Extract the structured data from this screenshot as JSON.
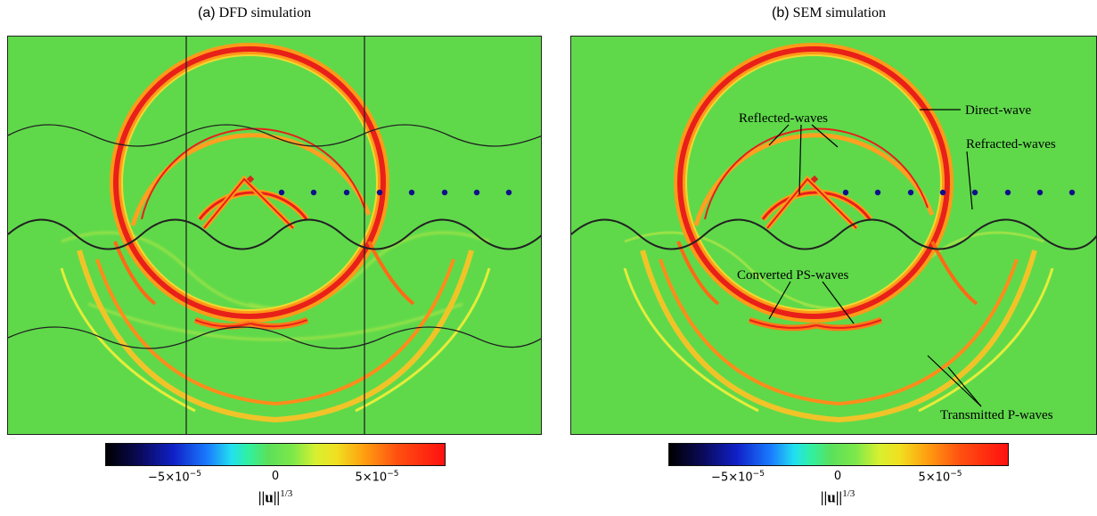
{
  "panel_a": {
    "tag": "(a)",
    "title": "DFD simulation",
    "colorbar": {
      "tick_neg": "−5×10",
      "tick_neg_exp": "−5",
      "tick_zero": "0",
      "tick_pos": "5×10",
      "tick_pos_exp": "−5",
      "label": "||u||",
      "label_exp": "1/3"
    }
  },
  "panel_b": {
    "tag": "(b)",
    "title": "SEM simulation",
    "annotations": {
      "direct": "Direct-wave",
      "reflected": "Reflected-waves",
      "refracted": "Refracted-waves",
      "converted": "Converted PS-waves",
      "transmitted": "Transmitted P-waves"
    },
    "colorbar": {
      "tick_neg": "−5×10",
      "tick_neg_exp": "−5",
      "tick_zero": "0",
      "tick_pos": "5×10",
      "tick_pos_exp": "−5",
      "label": "||u||",
      "label_exp": "1/3"
    }
  },
  "colors": {
    "background_field": "#5fd94a",
    "wave_red": "#e8201a",
    "wave_orange": "#ff9a18",
    "wave_yellow": "#e6ec3a",
    "source_marker": "#d4281c",
    "receiver_marker": "#10108a"
  }
}
